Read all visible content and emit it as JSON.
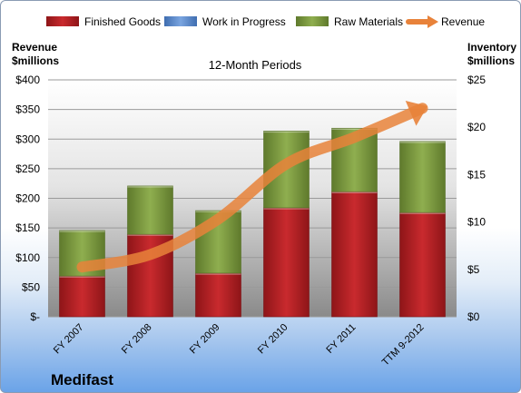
{
  "chart_data": {
    "type": "bar",
    "title": "12-Month Periods",
    "company": "Medifast",
    "left_axis_label": [
      "Revenue",
      "$millions"
    ],
    "right_axis_label": [
      "Inventory",
      "$millions"
    ],
    "categories": [
      "FY 2007",
      "FY 2008",
      "FY 2009",
      "FY 2010",
      "FY 2011",
      "TTM 9-2012"
    ],
    "left_ticks": [
      "$-",
      "$50",
      "$100",
      "$150",
      "$200",
      "$250",
      "$300",
      "$350",
      "$400"
    ],
    "right_ticks": [
      "$0",
      "$5",
      "$10",
      "$15",
      "$20",
      "$25"
    ],
    "left_ylim": [
      0,
      400
    ],
    "right_ylim": [
      0,
      25
    ],
    "legend_position": "top",
    "grid": true,
    "series": [
      {
        "name": "Finished Goods",
        "kind": "stacked-bar",
        "axis": "right",
        "color": "#c0262a",
        "values": [
          4.3,
          8.7,
          4.6,
          11.5,
          13.2,
          11.0
        ]
      },
      {
        "name": "Work in Progress",
        "kind": "stacked-bar",
        "axis": "right",
        "color": "#6f9bd8",
        "values": [
          0,
          0,
          0,
          0,
          0,
          0
        ]
      },
      {
        "name": "Raw Materials",
        "kind": "stacked-bar",
        "axis": "right",
        "color": "#8aab4a",
        "values": [
          4.8,
          5.1,
          6.6,
          8.1,
          6.7,
          7.5
        ]
      },
      {
        "name": "Revenue",
        "kind": "line-arrow",
        "axis": "left",
        "color": "#e8823a",
        "values": [
          84,
          105,
          165,
          258,
          303,
          352
        ]
      }
    ]
  }
}
